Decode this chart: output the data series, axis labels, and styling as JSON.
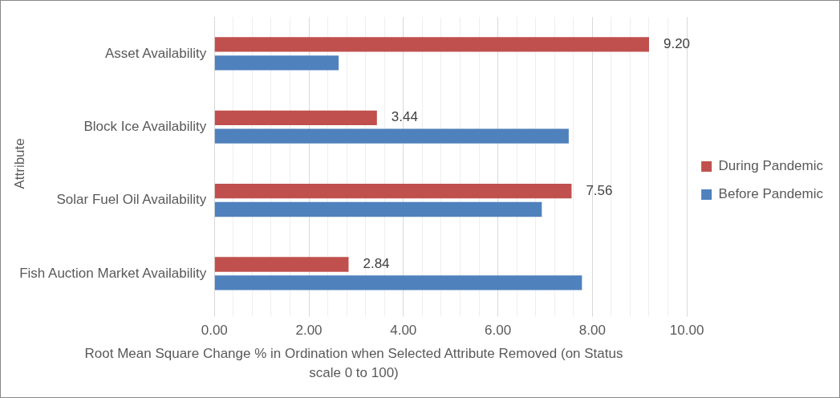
{
  "chart_data": {
    "type": "bar",
    "orientation": "horizontal",
    "ylabel": "Attribute",
    "xlabel": "Root Mean Square Change % in Ordination when Selected Attribute Removed (on Status scale 0 to 100)",
    "categories": [
      "Asset Availability",
      "Block Ice Availability",
      "Solar Fuel Oil Availability",
      "Fish Auction Market Availability"
    ],
    "series": [
      {
        "name": "During Pandemic",
        "color": "#c0504d",
        "values": [
          9.2,
          3.44,
          7.56,
          2.84
        ],
        "value_labels": [
          "9.20",
          "3.44",
          "7.56",
          "2.84"
        ]
      },
      {
        "name": "Before Pandemic",
        "color": "#4f81bd",
        "values": [
          2.63,
          7.5,
          6.93,
          7.78
        ]
      }
    ],
    "xlim": [
      0,
      10
    ],
    "xticks": [
      {
        "value": 0,
        "label": "0.00"
      },
      {
        "value": 0.4,
        "label": null
      },
      {
        "value": 0.8,
        "label": null
      },
      {
        "value": 1.2,
        "label": null
      },
      {
        "value": 1.6,
        "label": null
      },
      {
        "value": 2,
        "label": "2.00"
      },
      {
        "value": 2.4,
        "label": null
      },
      {
        "value": 2.8,
        "label": null
      },
      {
        "value": 3.2,
        "label": null
      },
      {
        "value": 3.6,
        "label": null
      },
      {
        "value": 4,
        "label": "4.00"
      },
      {
        "value": 4.4,
        "label": null
      },
      {
        "value": 4.8,
        "label": null
      },
      {
        "value": 5.2,
        "label": null
      },
      {
        "value": 5.6,
        "label": null
      },
      {
        "value": 6,
        "label": "6.00"
      },
      {
        "value": 6.4,
        "label": null
      },
      {
        "value": 6.8,
        "label": null
      },
      {
        "value": 7.2,
        "label": null
      },
      {
        "value": 7.6,
        "label": null
      },
      {
        "value": 8,
        "label": "8.00"
      },
      {
        "value": 8.4,
        "label": null
      },
      {
        "value": 8.8,
        "label": null
      },
      {
        "value": 9.2,
        "label": null
      },
      {
        "value": 9.6,
        "label": null
      },
      {
        "value": 10,
        "label": "10.00"
      }
    ],
    "grid": "x",
    "legend": "right"
  }
}
